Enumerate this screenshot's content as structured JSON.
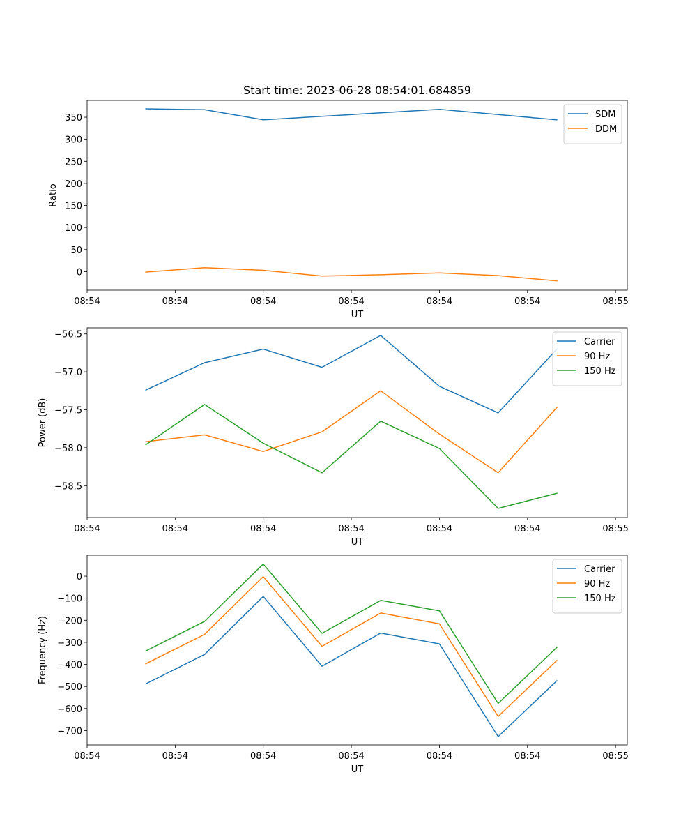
{
  "chart_data": [
    {
      "type": "line",
      "title": "Start time: 2023-06-28 08:54:01.684859",
      "xlabel": "UT",
      "ylabel": "Ratio",
      "x": [
        1,
        2,
        3,
        4,
        5,
        6,
        7,
        8
      ],
      "xlim": [
        0,
        9.2
      ],
      "x_tick_positions": [
        0,
        1.5,
        3,
        4.5,
        6,
        7.5,
        9
      ],
      "x_tick_labels": [
        "08:54",
        "08:54",
        "08:54",
        "08:54",
        "08:54",
        "08:54",
        "08:55"
      ],
      "ylim": [
        -42,
        388
      ],
      "y_ticks": [
        0,
        50,
        100,
        150,
        200,
        250,
        300,
        350
      ],
      "y_tick_labels": [
        "0",
        "50",
        "100",
        "150",
        "200",
        "250",
        "300",
        "350"
      ],
      "legend": "top-right",
      "series": [
        {
          "name": "SDM",
          "color": "#1f77b4",
          "values": [
            369,
            367,
            344,
            352,
            360,
            368,
            356,
            344
          ]
        },
        {
          "name": "DDM",
          "color": "#ff7f0e",
          "values": [
            -1,
            9,
            3,
            -10,
            -7,
            -3,
            -9,
            -21
          ]
        }
      ]
    },
    {
      "type": "line",
      "title": "",
      "xlabel": "UT",
      "ylabel": "Power (dB)",
      "x": [
        1,
        2,
        3,
        4,
        5,
        6,
        7,
        8
      ],
      "xlim": [
        0,
        9.2
      ],
      "x_tick_positions": [
        0,
        1.5,
        3,
        4.5,
        6,
        7.5,
        9
      ],
      "x_tick_labels": [
        "08:54",
        "08:54",
        "08:54",
        "08:54",
        "08:54",
        "08:54",
        "08:55"
      ],
      "ylim": [
        -58.92,
        -56.42
      ],
      "y_ticks": [
        -58.5,
        -58.0,
        -57.5,
        -57.0,
        -56.5
      ],
      "y_tick_labels": [
        "−58.5",
        "−58.0",
        "−57.5",
        "−57.0",
        "−56.5"
      ],
      "legend": "top-right",
      "series": [
        {
          "name": "Carrier",
          "color": "#1f77b4",
          "values": [
            -57.24,
            -56.88,
            -56.7,
            -56.94,
            -56.52,
            -57.19,
            -57.54,
            -56.7
          ]
        },
        {
          "name": "90 Hz",
          "color": "#ff7f0e",
          "values": [
            -57.92,
            -57.83,
            -58.05,
            -57.79,
            -57.25,
            -57.82,
            -58.33,
            -57.47
          ]
        },
        {
          "name": "150 Hz",
          "color": "#2ca02c",
          "values": [
            -57.96,
            -57.43,
            -57.94,
            -58.33,
            -57.65,
            -58.01,
            -58.8,
            -58.6
          ]
        }
      ]
    },
    {
      "type": "line",
      "title": "",
      "xlabel": "UT",
      "ylabel": "Frequency (Hz)",
      "x": [
        1,
        2,
        3,
        4,
        5,
        6,
        7,
        8
      ],
      "xlim": [
        0,
        9.2
      ],
      "x_tick_positions": [
        0,
        1.5,
        3,
        4.5,
        6,
        7.5,
        9
      ],
      "x_tick_labels": [
        "08:54",
        "08:54",
        "08:54",
        "08:54",
        "08:54",
        "08:54",
        "08:55"
      ],
      "ylim": [
        -765,
        95
      ],
      "y_ticks": [
        -700,
        -600,
        -500,
        -400,
        -300,
        -200,
        -100,
        0
      ],
      "y_tick_labels": [
        "−700",
        "−600",
        "−500",
        "−400",
        "−300",
        "−200",
        "−100",
        "0"
      ],
      "legend": "top-right",
      "series": [
        {
          "name": "Carrier",
          "color": "#1f77b4",
          "values": [
            -488,
            -355,
            -92,
            -408,
            -258,
            -307,
            -727,
            -474
          ]
        },
        {
          "name": "90 Hz",
          "color": "#ff7f0e",
          "values": [
            -397,
            -264,
            -2,
            -318,
            -167,
            -216,
            -636,
            -382
          ]
        },
        {
          "name": "150 Hz",
          "color": "#2ca02c",
          "values": [
            -339,
            -205,
            55,
            -259,
            -110,
            -157,
            -577,
            -323
          ]
        }
      ]
    }
  ]
}
